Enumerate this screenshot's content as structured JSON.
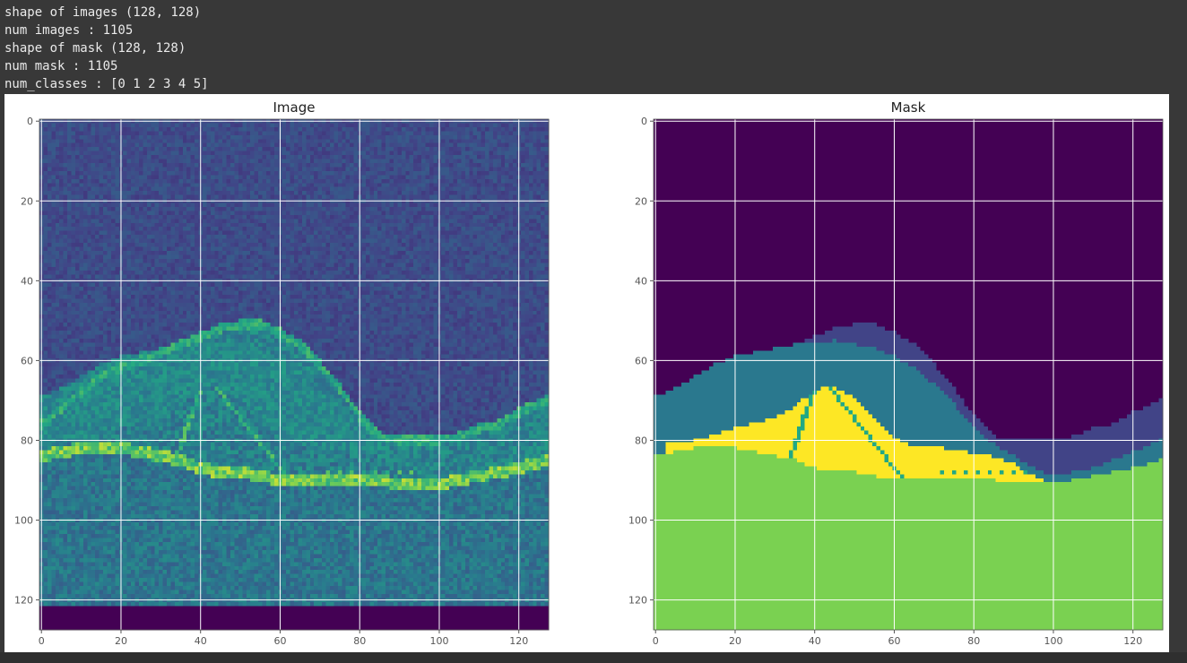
{
  "output": {
    "lines": [
      "shape of images (128, 128)",
      "num images : 1105",
      "shape of mask (128, 128)",
      "num mask : 1105",
      "num_classes : [0 1 2 3 4 5]"
    ]
  },
  "figure": {
    "colormap": "viridis",
    "colors": {
      "c0": "#440154",
      "c1": "#414487",
      "c2": "#2a788e",
      "c3": "#22a884",
      "c4": "#7ad151",
      "c5": "#fde725",
      "grid": "#ffffff",
      "axis": "#555555",
      "tick_label": "#555555",
      "title": "#222222",
      "background": "#ffffff"
    },
    "panels": [
      {
        "title": "Image",
        "grid": true,
        "xlim": [
          0,
          127
        ],
        "ylim": [
          127,
          0
        ],
        "kind": "image"
      },
      {
        "title": "Mask",
        "grid": true,
        "xlim": [
          0,
          127
        ],
        "ylim": [
          127,
          0
        ],
        "kind": "mask"
      }
    ],
    "x_ticks": [
      "0",
      "20",
      "40",
      "60",
      "80",
      "100",
      "120"
    ],
    "y_ticks": [
      "0",
      "20",
      "40",
      "60",
      "80",
      "100",
      "120"
    ]
  },
  "chart_data": [
    {
      "type": "heatmap",
      "title": "Image",
      "xlabel": "",
      "ylabel": "",
      "xlim": [
        0,
        127
      ],
      "ylim": [
        127,
        0
      ],
      "shape": [
        128,
        128
      ],
      "colormap": "viridis",
      "x_ticks": [
        0,
        20,
        40,
        60,
        80,
        100,
        120
      ],
      "y_ticks": [
        0,
        20,
        40,
        60,
        80,
        100,
        120
      ]
    },
    {
      "type": "heatmap",
      "title": "Mask",
      "xlabel": "",
      "ylabel": "",
      "xlim": [
        0,
        127
      ],
      "ylim": [
        127,
        0
      ],
      "shape": [
        128,
        128
      ],
      "colormap": "viridis",
      "classes": [
        0,
        1,
        2,
        3,
        4,
        5
      ],
      "x_ticks": [
        0,
        20,
        40,
        60,
        80,
        100,
        120
      ],
      "y_ticks": [
        0,
        20,
        40,
        60,
        80,
        100,
        120
      ],
      "boundaries": {
        "x": [
          0,
          5,
          10,
          15,
          20,
          25,
          30,
          35,
          40,
          45,
          50,
          55,
          60,
          65,
          70,
          75,
          80,
          85,
          90,
          95,
          100,
          105,
          110,
          115,
          120,
          127
        ],
        "layer1_top": [
          76,
          72,
          68,
          64,
          62,
          60,
          58,
          56,
          54,
          52,
          51,
          51,
          53,
          56,
          61,
          67,
          74,
          79,
          80,
          80,
          80,
          79,
          77,
          76,
          73,
          70
        ],
        "layer2_top": [
          69,
          67,
          64,
          61,
          59,
          58,
          57,
          56,
          56,
          55,
          56,
          57,
          59,
          62,
          66,
          71,
          77,
          81,
          84,
          87,
          89,
          88,
          87,
          85,
          83,
          80
        ],
        "layer4_top": [
          84,
          83,
          82,
          82,
          82,
          83,
          84,
          85,
          87,
          88,
          88,
          89,
          90,
          90,
          90,
          90,
          90,
          90,
          91,
          91,
          91,
          90,
          89,
          88,
          87,
          85
        ],
        "fluid_x": [
          3,
          10,
          20,
          28,
          33,
          37,
          40,
          42,
          45,
          49,
          53,
          58,
          65,
          72,
          78,
          84,
          90,
          95,
          97
        ],
        "fluid_top": [
          81,
          80,
          77,
          75,
          73,
          70,
          68,
          67,
          67,
          69,
          73,
          78,
          82,
          82,
          83,
          84,
          86,
          89,
          90
        ]
      }
    }
  ]
}
